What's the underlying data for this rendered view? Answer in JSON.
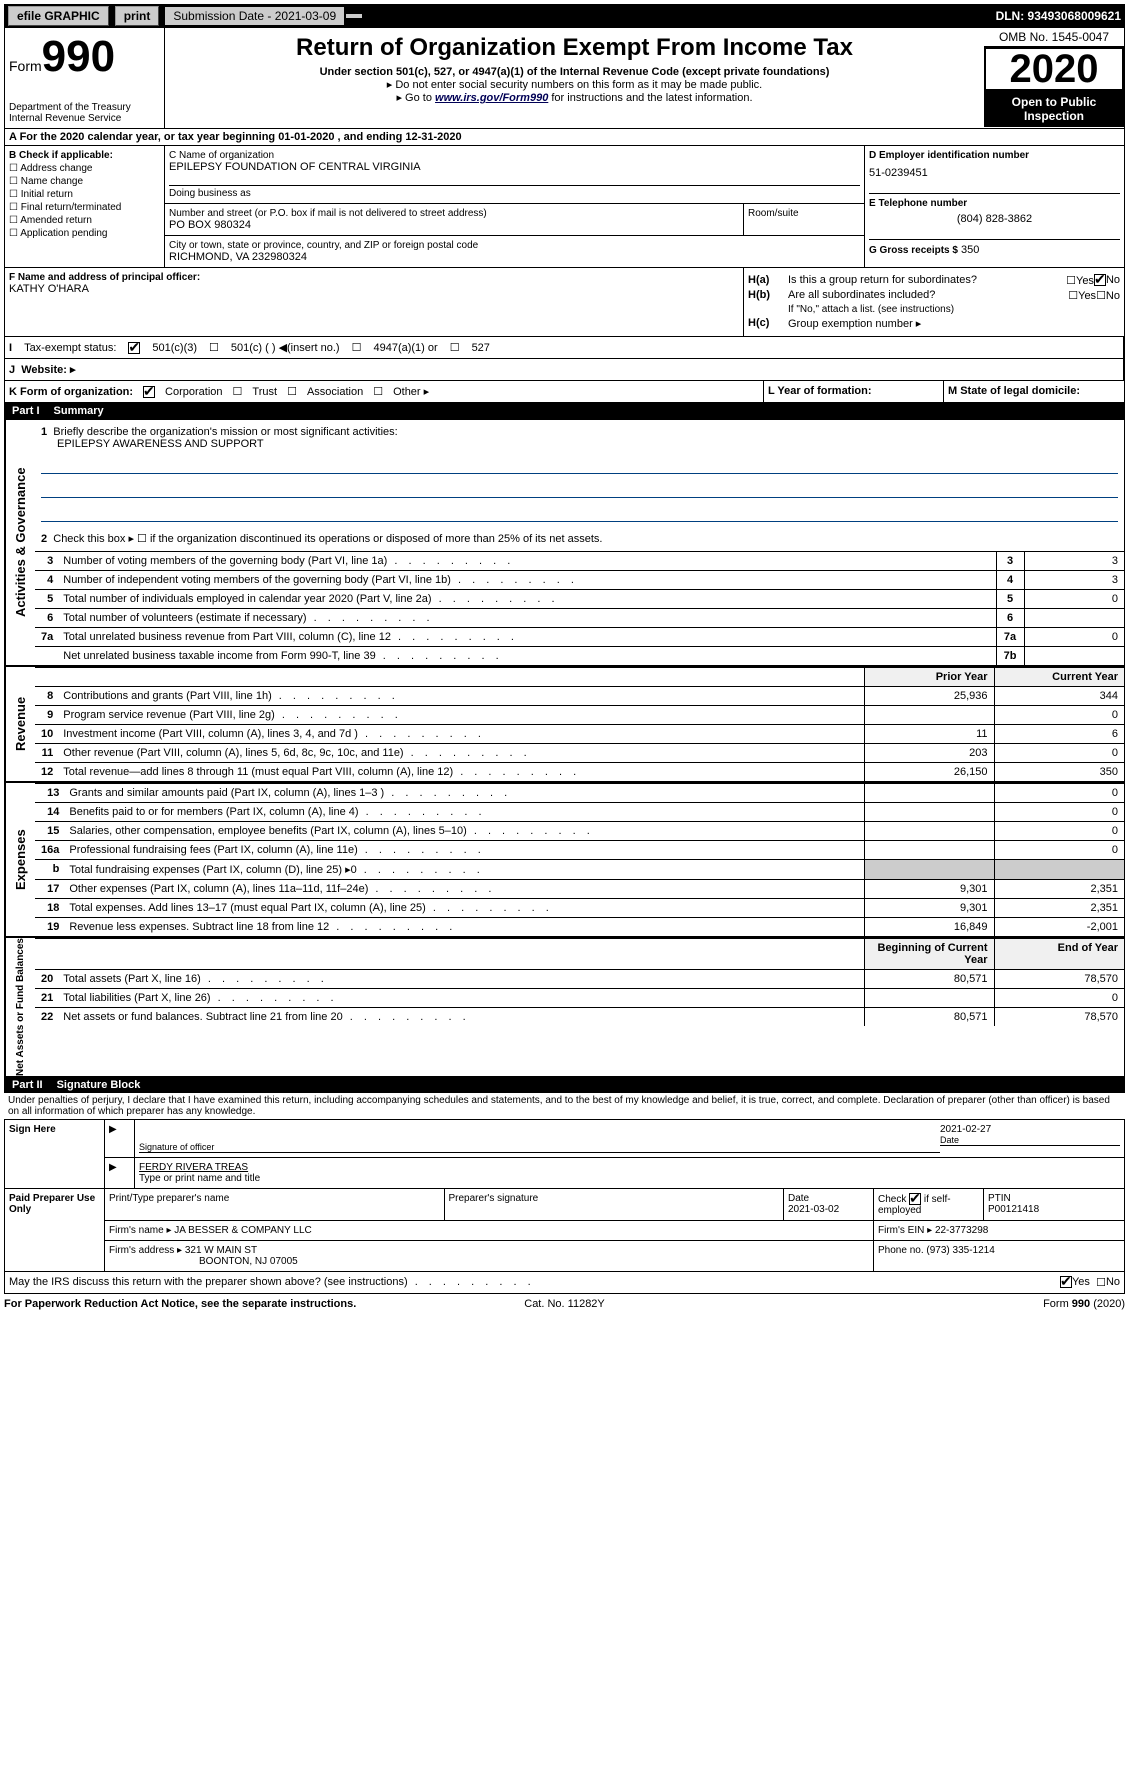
{
  "topbar": {
    "efile": "efile GRAPHIC",
    "print": "print",
    "submission_label": "Submission Date - 2021-03-09",
    "dln": "DLN: 93493068009621"
  },
  "header": {
    "form_label": "Form",
    "form_number": "990",
    "title": "Return of Organization Exempt From Income Tax",
    "subtitle1": "Under section 501(c), 527, or 4947(a)(1) of the Internal Revenue Code (except private foundations)",
    "subtitle2": "▸ Do not enter social security numbers on this form as it may be made public.",
    "subtitle3": "▸ Go to www.irs.gov/Form990 for instructions and the latest information.",
    "form990_link": "www.irs.gov/Form990",
    "dept": "Department of the Treasury\nInternal Revenue Service",
    "omb": "OMB No. 1545-0047",
    "year": "2020",
    "open_public": "Open to Public Inspection"
  },
  "taxyear": "A For the 2020 calendar year, or tax year beginning 01-01-2020  , and ending 12-31-2020",
  "section_b": {
    "label": "B Check if applicable:",
    "options": [
      "Address change",
      "Name change",
      "Initial return",
      "Final return/terminated",
      "Amended return",
      "Application pending"
    ]
  },
  "section_c": {
    "name_label": "C Name of organization",
    "name": "EPILEPSY FOUNDATION OF CENTRAL VIRGINIA",
    "dba_label": "Doing business as",
    "addr_label": "Number and street (or P.O. box if mail is not delivered to street address)",
    "room_label": "Room/suite",
    "addr": "PO BOX 980324",
    "city_label": "City or town, state or province, country, and ZIP or foreign postal code",
    "city": "RICHMOND, VA  232980324"
  },
  "section_d": {
    "label": "D Employer identification number",
    "value": "51-0239451"
  },
  "section_e": {
    "label": "E Telephone number",
    "value": "(804) 828-3862"
  },
  "section_g": {
    "label": "G Gross receipts $",
    "value": "350"
  },
  "section_f": {
    "label": "F  Name and address of principal officer:",
    "value": "KATHY O'HARA"
  },
  "section_h": {
    "a_label": "Is this a group return for subordinates?",
    "a_no": true,
    "b_label": "Are all subordinates included?",
    "b_note": "If \"No,\" attach a list. (see instructions)",
    "c_label": "Group exemption number ▸"
  },
  "section_i": {
    "label": "Tax-exempt status:",
    "opts": [
      "501(c)(3)",
      "501(c) (  ) ◀(insert no.)",
      "4947(a)(1) or",
      "527"
    ]
  },
  "section_j": {
    "label": "Website: ▸"
  },
  "section_k": {
    "label": "K Form of organization:",
    "opts": [
      "Corporation",
      "Trust",
      "Association",
      "Other ▸"
    ]
  },
  "section_l": {
    "label": "L Year of formation:"
  },
  "section_m": {
    "label": "M State of legal domicile:"
  },
  "part1": {
    "header_num": "Part I",
    "header_title": "Summary",
    "line1_label": "Briefly describe the organization's mission or most significant activities:",
    "line1_value": "EPILEPSY AWARENESS AND SUPPORT",
    "line2_label": "Check this box ▸ ☐  if the organization discontinued its operations or disposed of more than 25% of its net assets.",
    "sidebar_gov": "Activities & Governance",
    "sidebar_rev": "Revenue",
    "sidebar_exp": "Expenses",
    "sidebar_net": "Net Assets or Fund Balances",
    "rows_gov": [
      {
        "num": "3",
        "label": "Number of voting members of the governing body (Part VI, line 1a)",
        "col": "3",
        "val": "3"
      },
      {
        "num": "4",
        "label": "Number of independent voting members of the governing body (Part VI, line 1b)",
        "col": "4",
        "val": "3"
      },
      {
        "num": "5",
        "label": "Total number of individuals employed in calendar year 2020 (Part V, line 2a)",
        "col": "5",
        "val": "0"
      },
      {
        "num": "6",
        "label": "Total number of volunteers (estimate if necessary)",
        "col": "6",
        "val": ""
      },
      {
        "num": "7a",
        "label": "Total unrelated business revenue from Part VIII, column (C), line 12",
        "col": "7a",
        "val": "0"
      },
      {
        "num": "",
        "label": "Net unrelated business taxable income from Form 990-T, line 39",
        "col": "7b",
        "val": ""
      }
    ],
    "col_prior": "Prior Year",
    "col_current": "Current Year",
    "rows_rev": [
      {
        "num": "8",
        "label": "Contributions and grants (Part VIII, line 1h)",
        "prior": "25,936",
        "cur": "344"
      },
      {
        "num": "9",
        "label": "Program service revenue (Part VIII, line 2g)",
        "prior": "",
        "cur": "0"
      },
      {
        "num": "10",
        "label": "Investment income (Part VIII, column (A), lines 3, 4, and 7d )",
        "prior": "11",
        "cur": "6"
      },
      {
        "num": "11",
        "label": "Other revenue (Part VIII, column (A), lines 5, 6d, 8c, 9c, 10c, and 11e)",
        "prior": "203",
        "cur": "0"
      },
      {
        "num": "12",
        "label": "Total revenue—add lines 8 through 11 (must equal Part VIII, column (A), line 12)",
        "prior": "26,150",
        "cur": "350"
      }
    ],
    "rows_exp": [
      {
        "num": "13",
        "label": "Grants and similar amounts paid (Part IX, column (A), lines 1–3 )",
        "prior": "",
        "cur": "0"
      },
      {
        "num": "14",
        "label": "Benefits paid to or for members (Part IX, column (A), line 4)",
        "prior": "",
        "cur": "0"
      },
      {
        "num": "15",
        "label": "Salaries, other compensation, employee benefits (Part IX, column (A), lines 5–10)",
        "prior": "",
        "cur": "0"
      },
      {
        "num": "16a",
        "label": "Professional fundraising fees (Part IX, column (A), line 11e)",
        "prior": "",
        "cur": "0"
      },
      {
        "num": "b",
        "label": "Total fundraising expenses (Part IX, column (D), line 25) ▸0",
        "prior": "",
        "cur": ""
      },
      {
        "num": "17",
        "label": "Other expenses (Part IX, column (A), lines 11a–11d, 11f–24e)",
        "prior": "9,301",
        "cur": "2,351"
      },
      {
        "num": "18",
        "label": "Total expenses. Add lines 13–17 (must equal Part IX, column (A), line 25)",
        "prior": "9,301",
        "cur": "2,351"
      },
      {
        "num": "19",
        "label": "Revenue less expenses. Subtract line 18 from line 12",
        "prior": "16,849",
        "cur": "-2,001"
      }
    ],
    "col_begin": "Beginning of Current Year",
    "col_end": "End of Year",
    "rows_net": [
      {
        "num": "20",
        "label": "Total assets (Part X, line 16)",
        "prior": "80,571",
        "cur": "78,570"
      },
      {
        "num": "21",
        "label": "Total liabilities (Part X, line 26)",
        "prior": "",
        "cur": "0"
      },
      {
        "num": "22",
        "label": "Net assets or fund balances. Subtract line 21 from line 20",
        "prior": "80,571",
        "cur": "78,570"
      }
    ]
  },
  "part2": {
    "header_num": "Part II",
    "header_title": "Signature Block",
    "perjury": "Under penalties of perjury, I declare that I have examined this return, including accompanying schedules and statements, and to the best of my knowledge and belief, it is true, correct, and complete. Declaration of preparer (other than officer) is based on all information of which preparer has any knowledge."
  },
  "sign": {
    "label": "Sign Here",
    "sig_officer": "Signature of officer",
    "date": "2021-02-27",
    "date_label": "Date",
    "name": "FERDY RIVERA TREAS",
    "name_label": "Type or print name and title"
  },
  "paid": {
    "label": "Paid Preparer Use Only",
    "prep_name_label": "Print/Type preparer's name",
    "prep_sig_label": "Preparer's signature",
    "date_label": "Date",
    "date": "2021-03-02",
    "check_label": "Check ☑ if self-employed",
    "ptin_label": "PTIN",
    "ptin": "P00121418",
    "firm_name_label": "Firm's name  ▸",
    "firm_name": "JA BESSER & COMPANY LLC",
    "firm_ein_label": "Firm's EIN ▸",
    "firm_ein": "22-3773298",
    "firm_addr_label": "Firm's address ▸",
    "firm_addr1": "321 W MAIN ST",
    "firm_addr2": "BOONTON, NJ  07005",
    "phone_label": "Phone no.",
    "phone": "(973) 335-1214"
  },
  "discuss": {
    "label": "May the IRS discuss this return with the preparer shown above? (see instructions)",
    "yes": true
  },
  "footer": {
    "left": "For Paperwork Reduction Act Notice, see the separate instructions.",
    "mid": "Cat. No. 11282Y",
    "right": "Form 990 (2020)"
  }
}
